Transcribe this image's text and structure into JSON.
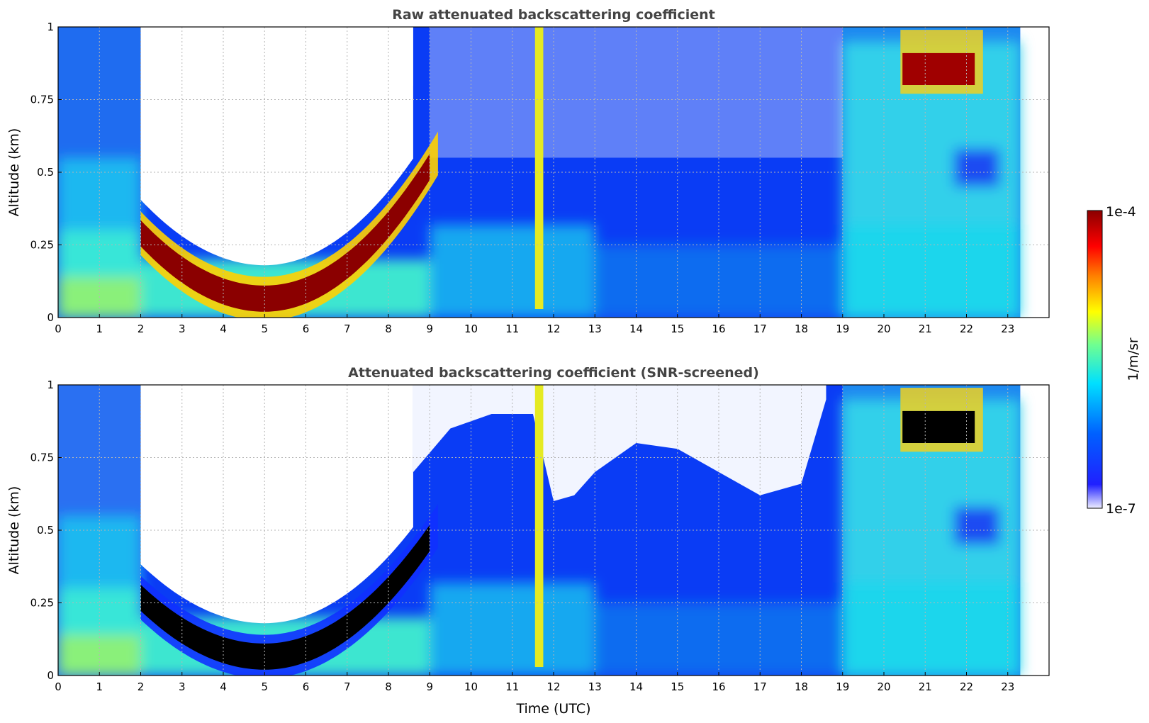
{
  "chart_data": [
    {
      "type": "heatmap",
      "title": "Raw attenuated backscattering coefficient",
      "xlabel": "",
      "ylabel": "Altitude (km)",
      "xlim": [
        0,
        24
      ],
      "ylim": [
        0,
        1
      ],
      "xticks": [
        "0",
        "1",
        "2",
        "3",
        "4",
        "5",
        "6",
        "7",
        "8",
        "9",
        "10",
        "11",
        "12",
        "13",
        "14",
        "15",
        "16",
        "17",
        "18",
        "19",
        "20",
        "21",
        "22",
        "23"
      ],
      "yticks": [
        "0",
        "0.25",
        "0.5",
        "0.75",
        "1"
      ],
      "grid": true,
      "data_end_time": 23.3,
      "features": {
        "cloud_base_arc": {
          "start": 2.0,
          "end": 9.2,
          "min_altitude": 0.05,
          "min_time": 5.0,
          "color": "#8b0000"
        },
        "fog_layer": {
          "start": 11.55,
          "end": 11.75,
          "color": "#e5ea22"
        },
        "upper_cloud": {
          "start": 20.4,
          "end": 22.4,
          "altitude": 0.85,
          "color": "#a00000"
        }
      }
    },
    {
      "type": "heatmap",
      "title": "Attenuated backscattering coefficient (SNR-screened)",
      "xlabel": "Time (UTC)",
      "ylabel": "Altitude (km)",
      "xlim": [
        0,
        24
      ],
      "ylim": [
        0,
        1
      ],
      "xticks": [
        "0",
        "1",
        "2",
        "3",
        "4",
        "5",
        "6",
        "7",
        "8",
        "9",
        "10",
        "11",
        "12",
        "13",
        "14",
        "15",
        "16",
        "17",
        "18",
        "19",
        "20",
        "21",
        "22",
        "23"
      ],
      "yticks": [
        "0",
        "0.25",
        "0.5",
        "0.75",
        "1"
      ],
      "grid": true,
      "data_end_time": 23.3,
      "features": {
        "cloud_base_arc": {
          "start": 2.0,
          "end": 9.2,
          "min_altitude": 0.05,
          "min_time": 5.0,
          "color": "#000000"
        },
        "fog_layer": {
          "start": 11.55,
          "end": 11.75,
          "color": "#e5ea22"
        },
        "upper_cloud": {
          "start": 20.4,
          "end": 22.4,
          "altitude": 0.85,
          "color": "#000000"
        }
      }
    }
  ],
  "colorbar": {
    "label": "1/m/sr",
    "max_label": "1e-4",
    "min_label": "1e-7",
    "colors": [
      "#eeeeff",
      "#0000ff",
      "#0080ff",
      "#00e5ff",
      "#7fff80",
      "#ffff00",
      "#ff8000",
      "#ff0000",
      "#8b0000"
    ]
  }
}
